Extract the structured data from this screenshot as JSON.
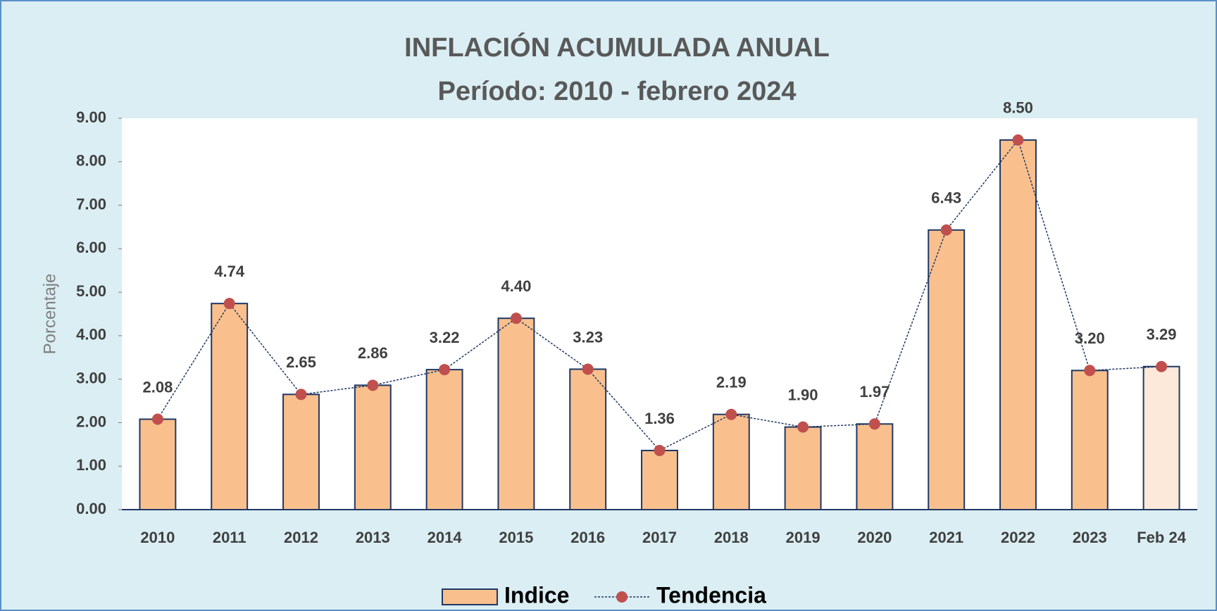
{
  "chart_data": {
    "type": "bar",
    "title": "INFLACIÓN ACUMULADA ANUAL",
    "subtitle": "Período: 2010 - febrero 2024",
    "y_label": "Porcentaje",
    "categories": [
      "2010",
      "2011",
      "2012",
      "2013",
      "2014",
      "2015",
      "2016",
      "2017",
      "2018",
      "2019",
      "2020",
      "2021",
      "2022",
      "2023",
      "Feb 24"
    ],
    "series": [
      {
        "name": "Indice",
        "type": "bar",
        "color": "#f9c08e",
        "colors": [
          "#f9c08e",
          "#f9c08e",
          "#f9c08e",
          "#f9c08e",
          "#f9c08e",
          "#f9c08e",
          "#f9c08e",
          "#f9c08e",
          "#f9c08e",
          "#f9c08e",
          "#f9c08e",
          "#f9c08e",
          "#f9c08e",
          "#f9c08e",
          "#fde9d9"
        ],
        "values": [
          2.08,
          4.74,
          2.65,
          2.86,
          3.22,
          4.4,
          3.23,
          1.36,
          2.19,
          1.9,
          1.97,
          6.43,
          8.5,
          3.2,
          3.29
        ],
        "value_labels": [
          "2.08",
          "4.74",
          "2.65",
          "2.86",
          "3.22",
          "4.40",
          "3.23",
          "1.36",
          "2.19",
          "1.90",
          "1.97",
          "6.43",
          "8.50",
          "3.20",
          "3.29"
        ]
      },
      {
        "name": "Tendencia",
        "type": "line",
        "color": "#c0504d",
        "line_color": "#1f3864",
        "values": [
          2.08,
          4.74,
          2.65,
          2.86,
          3.22,
          4.4,
          3.23,
          1.36,
          2.19,
          1.9,
          1.97,
          6.43,
          8.5,
          3.2,
          3.29
        ]
      }
    ],
    "ylim": [
      0,
      9
    ],
    "yticks": [
      {
        "value": 0,
        "label": "0.00"
      },
      {
        "value": 1,
        "label": "1.00"
      },
      {
        "value": 2,
        "label": "2.00"
      },
      {
        "value": 3,
        "label": "3.00"
      },
      {
        "value": 4,
        "label": "4.00"
      },
      {
        "value": 5,
        "label": "5.00"
      },
      {
        "value": 6,
        "label": "6.00"
      },
      {
        "value": 7,
        "label": "7.00"
      },
      {
        "value": 8,
        "label": "8.00"
      },
      {
        "value": 9,
        "label": "9.00"
      }
    ],
    "legend": "bottom"
  }
}
